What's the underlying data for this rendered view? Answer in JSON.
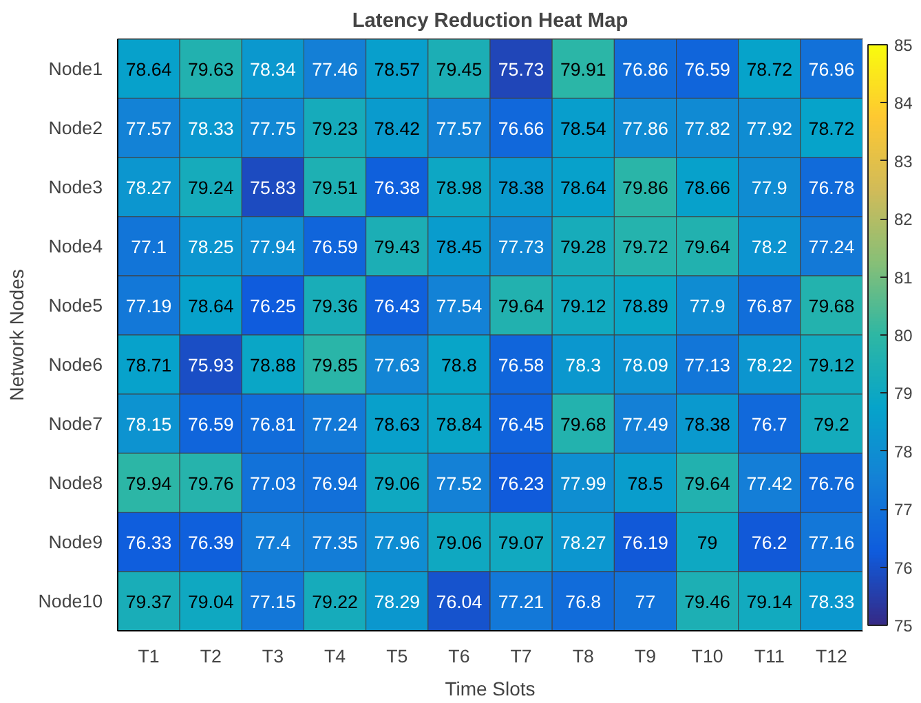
{
  "chart_data": {
    "type": "heatmap",
    "title": "Latency Reduction Heat Map",
    "xlabel": "Time Slots",
    "ylabel": "Network Nodes",
    "categories": [
      "T1",
      "T2",
      "T3",
      "T4",
      "T5",
      "T6",
      "T7",
      "T8",
      "T9",
      "T10",
      "T11",
      "T12"
    ],
    "y_categories": [
      "Node1",
      "Node2",
      "Node3",
      "Node4",
      "Node5",
      "Node6",
      "Node7",
      "Node8",
      "Node9",
      "Node10"
    ],
    "cells": [
      [
        78.64,
        79.63,
        78.34,
        77.46,
        78.57,
        79.45,
        75.73,
        79.91,
        76.86,
        76.59,
        78.72,
        76.96
      ],
      [
        77.57,
        78.33,
        77.75,
        79.23,
        78.42,
        77.57,
        76.66,
        78.54,
        77.86,
        77.82,
        77.92,
        78.72
      ],
      [
        78.27,
        79.24,
        75.83,
        79.51,
        76.38,
        78.98,
        78.38,
        78.64,
        79.86,
        78.66,
        77.9,
        76.78
      ],
      [
        77.1,
        78.25,
        77.94,
        76.59,
        79.43,
        78.45,
        77.73,
        79.28,
        79.72,
        79.64,
        78.2,
        77.24
      ],
      [
        77.19,
        78.64,
        76.25,
        79.36,
        76.43,
        77.54,
        79.64,
        79.12,
        78.89,
        77.9,
        76.87,
        79.68
      ],
      [
        78.71,
        75.93,
        78.88,
        79.85,
        77.63,
        78.8,
        76.58,
        78.3,
        78.09,
        77.13,
        78.22,
        79.12
      ],
      [
        78.15,
        76.59,
        76.81,
        77.24,
        78.63,
        78.84,
        76.45,
        79.68,
        77.49,
        78.38,
        76.7,
        79.2
      ],
      [
        79.94,
        79.76,
        77.03,
        76.94,
        79.06,
        77.52,
        76.23,
        77.99,
        78.5,
        79.64,
        77.42,
        76.76
      ],
      [
        76.33,
        76.39,
        77.4,
        77.35,
        77.96,
        79.06,
        79.07,
        78.27,
        76.19,
        79,
        76.2,
        77.16
      ],
      [
        79.37,
        79.04,
        77.15,
        79.22,
        78.29,
        76.04,
        77.21,
        76.8,
        77,
        79.46,
        79.14,
        78.33
      ]
    ],
    "clim": [
      75,
      85
    ],
    "cticks": [
      75,
      76,
      77,
      78,
      79,
      80,
      81,
      82,
      83,
      84,
      85
    ],
    "data_labels": true
  }
}
